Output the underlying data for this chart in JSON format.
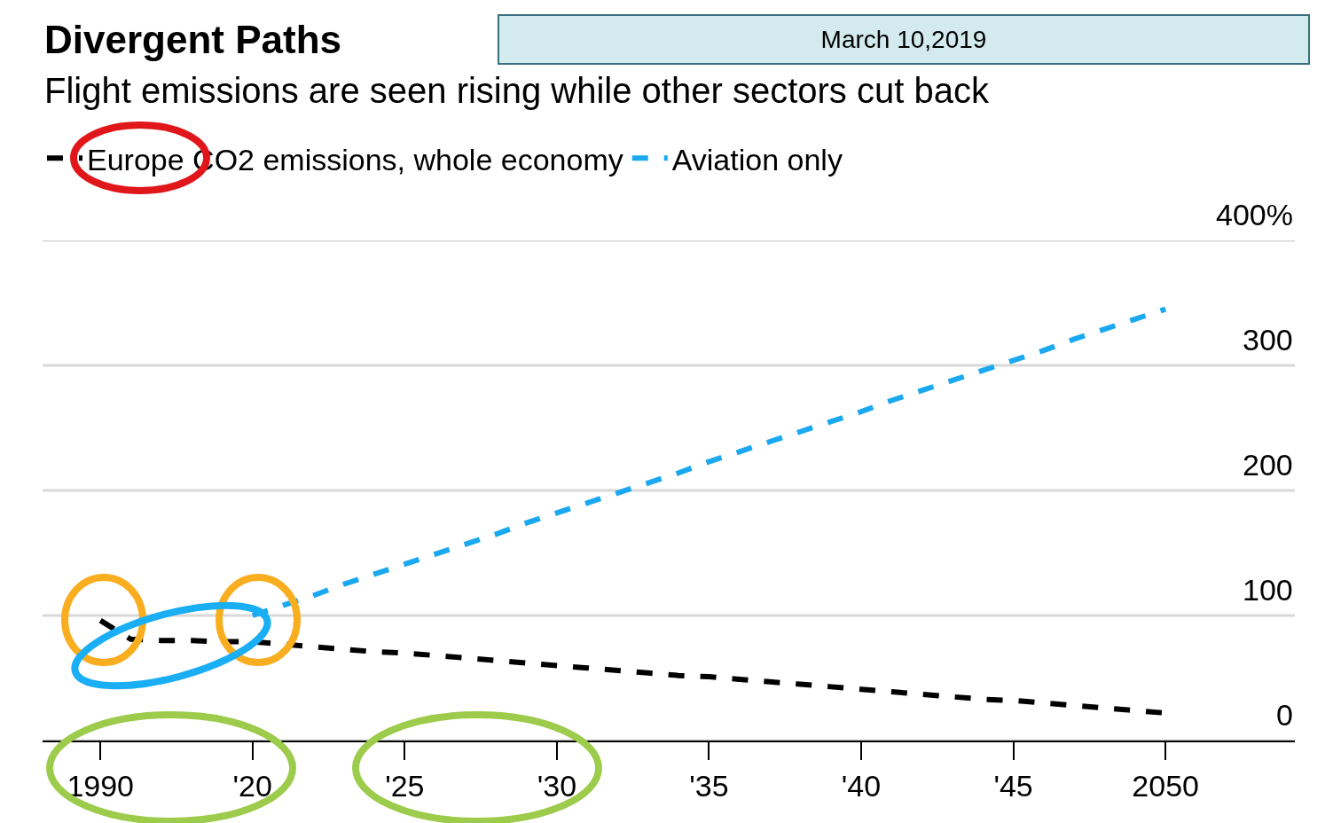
{
  "chart_data": {
    "type": "line",
    "title": "Divergent Paths",
    "subtitle": "Flight emissions are seen rising while other sectors cut back",
    "annotations": [
      "March 10,2019"
    ],
    "categories": [
      "1990",
      null,
      null,
      null,
      null,
      "'20",
      null,
      null,
      null,
      null,
      "'25",
      null,
      null,
      null,
      null,
      "'30",
      null,
      null,
      null,
      null,
      "'35",
      null,
      null,
      null,
      null,
      "'40",
      null,
      null,
      null,
      null,
      "'45",
      null,
      null,
      null,
      null,
      "2050"
    ],
    "series": [
      {
        "name": "Europe CO2 emissions, whole economy",
        "color": "#000000",
        "values": [
          96,
          81,
          80,
          80,
          79,
          79,
          77,
          75,
          73,
          71,
          70,
          68,
          66,
          64,
          62,
          60,
          58,
          56,
          54,
          52,
          51,
          49,
          47,
          45,
          43,
          41,
          39,
          37,
          35,
          33,
          32,
          30,
          28,
          26,
          24,
          22
        ]
      },
      {
        "name": "Aviation only",
        "color": "#1aa9f0",
        "values": [
          null,
          null,
          null,
          null,
          null,
          100,
          108,
          116,
          125,
          133,
          141,
          149,
          157,
          165,
          174,
          182,
          190,
          198,
          206,
          214,
          223,
          231,
          239,
          247,
          255,
          263,
          272,
          280,
          288,
          296,
          304,
          312,
          321,
          329,
          337,
          345
        ]
      }
    ],
    "ylim": [
      0,
      400
    ],
    "yticks": [
      0,
      100,
      200,
      300,
      {
        "value": 400,
        "label": "400%"
      }
    ],
    "grid": "y",
    "legend": "top left",
    "marker": "none",
    "line_style": "dashed"
  }
}
